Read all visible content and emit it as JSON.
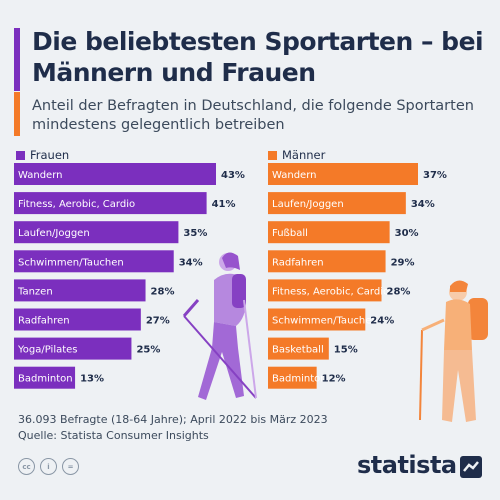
{
  "header": {
    "title": "Die beliebtesten Sportarten – bei Männern und Frauen",
    "subtitle": "Anteil der Befragten in Deutschland, die folgende Sportarten mindestens gelegentlich betreiben"
  },
  "colors": {
    "women": "#7b2fbe",
    "men": "#f47a28",
    "text_dark": "#1f2d4a",
    "background": "#eef1f4"
  },
  "chart_data": [
    {
      "type": "bar",
      "orientation": "horizontal",
      "series_name": "Frauen",
      "color": "#7b2fbe",
      "unit": "%",
      "categories": [
        "Wandern",
        "Fitness, Aerobic, Cardio",
        "Laufen/Joggen",
        "Schwimmen/Tauchen",
        "Tanzen",
        "Radfahren",
        "Yoga/Pilates",
        "Badminton"
      ],
      "values": [
        43,
        41,
        35,
        34,
        28,
        27,
        25,
        13
      ],
      "labels": [
        "43%",
        "41%",
        "35%",
        "34%",
        "28%",
        "27%",
        "25%",
        "13%"
      ]
    },
    {
      "type": "bar",
      "orientation": "horizontal",
      "series_name": "Männer",
      "color": "#f47a28",
      "unit": "%",
      "categories": [
        "Wandern",
        "Laufen/Joggen",
        "Fußball",
        "Radfahren",
        "Fitness, Aerobic, Cardio",
        "Schwimmen/Tauchen",
        "Basketball",
        "Badminton"
      ],
      "values": [
        37,
        34,
        30,
        29,
        28,
        24,
        15,
        12
      ],
      "labels": [
        "37%",
        "34%",
        "30%",
        "29%",
        "28%",
        "24%",
        "15%",
        "12%"
      ]
    }
  ],
  "footer": {
    "note": "36.093 Befragte (18-64 Jahre); April 2022 bis März 2023",
    "source": "Quelle: Statista Consumer Insights"
  },
  "license_icons": [
    "cc",
    "i",
    "="
  ],
  "brand": {
    "logo_text": "statista"
  }
}
